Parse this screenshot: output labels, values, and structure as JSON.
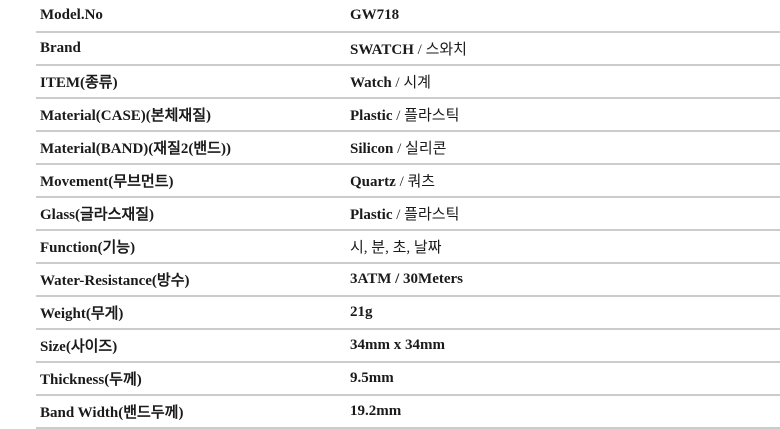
{
  "colors": {
    "background": "#ffffff",
    "text": "#1a1a1a",
    "divider": "#cccccc"
  },
  "table": {
    "rows": [
      {
        "label": "Model.No",
        "value_strong": "GW718",
        "value_rest": ""
      },
      {
        "label": "Brand",
        "value_strong": "SWATCH",
        "value_rest": " / 스와치"
      },
      {
        "label": "ITEM(종류)",
        "value_strong": "Watch",
        "value_rest": " / 시계"
      },
      {
        "label": "Material(CASE)(본체재질)",
        "value_strong": "Plastic",
        "value_rest": " / 플라스틱"
      },
      {
        "label": "Material(BAND)(재질2(밴드))",
        "value_strong": "Silicon",
        "value_rest": " / 실리콘"
      },
      {
        "label": "Movement(무브먼트)",
        "value_strong": "Quartz",
        "value_rest": " / 쿼츠"
      },
      {
        "label": "Glass(글라스재질)",
        "value_strong": "Plastic",
        "value_rest": " / 플라스틱"
      },
      {
        "label": "Function(기능)",
        "value_strong": "",
        "value_rest": "시, 분, 초, 날짜"
      },
      {
        "label": "Water-Resistance(방수)",
        "value_strong": "3ATM / 30Meters",
        "value_rest": ""
      },
      {
        "label": "Weight(무게)",
        "value_strong": "21g",
        "value_rest": ""
      },
      {
        "label": "Size(사이즈)",
        "value_strong": "34mm x 34mm",
        "value_rest": ""
      },
      {
        "label": "Thickness(두께)",
        "value_strong": "9.5mm",
        "value_rest": ""
      },
      {
        "label": "Band Width(밴드두께)",
        "value_strong": "19.2mm",
        "value_rest": ""
      }
    ]
  }
}
